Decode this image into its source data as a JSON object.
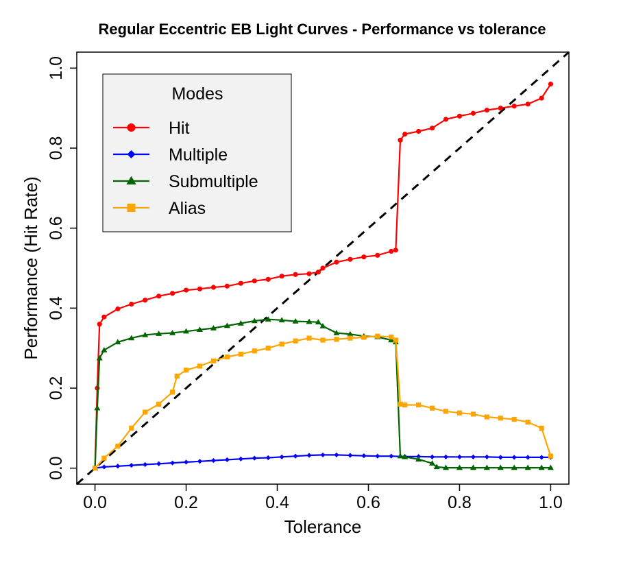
{
  "chart_data": {
    "type": "line",
    "title": "Regular Eccentric EB Light Curves - Performance vs tolerance",
    "xlabel": "Tolerance",
    "ylabel": "Performance (Hit Rate)",
    "xlim": [
      -0.04,
      1.04
    ],
    "ylim": [
      -0.04,
      1.04
    ],
    "xticks": [
      0.0,
      0.2,
      0.4,
      0.6,
      0.8,
      1.0
    ],
    "xtick_labels": [
      "0.0",
      "0.2",
      "0.4",
      "0.6",
      "0.8",
      "1.0"
    ],
    "yticks": [
      0.0,
      0.2,
      0.4,
      0.6,
      0.8,
      1.0
    ],
    "ytick_labels": [
      "0.0",
      "0.2",
      "0.4",
      "0.6",
      "0.8",
      "1.0"
    ],
    "legend": {
      "title": "Modes",
      "placement": "top-left"
    },
    "reference_line": {
      "name": "y = x",
      "color": "#000000",
      "style": "dashed"
    },
    "series": [
      {
        "name": "Hit",
        "color": "#ff0000",
        "marker": "circle",
        "x": [
          0,
          0.005,
          0.01,
          0.02,
          0.05,
          0.08,
          0.11,
          0.14,
          0.17,
          0.2,
          0.23,
          0.26,
          0.29,
          0.32,
          0.35,
          0.38,
          0.41,
          0.44,
          0.47,
          0.49,
          0.5,
          0.53,
          0.56,
          0.59,
          0.62,
          0.65,
          0.66,
          0.67,
          0.68,
          0.71,
          0.74,
          0.77,
          0.8,
          0.83,
          0.86,
          0.89,
          0.92,
          0.95,
          0.98,
          1.0
        ],
        "y": [
          0,
          0.2,
          0.36,
          0.378,
          0.398,
          0.41,
          0.42,
          0.43,
          0.437,
          0.445,
          0.448,
          0.452,
          0.455,
          0.462,
          0.468,
          0.472,
          0.48,
          0.484,
          0.486,
          0.49,
          0.5,
          0.515,
          0.522,
          0.528,
          0.532,
          0.542,
          0.545,
          0.82,
          0.835,
          0.842,
          0.85,
          0.872,
          0.88,
          0.887,
          0.895,
          0.9,
          0.905,
          0.91,
          0.925,
          0.96
        ]
      },
      {
        "name": "Multiple",
        "color": "#0000ff",
        "marker": "diamond",
        "x": [
          0,
          0.02,
          0.05,
          0.08,
          0.11,
          0.14,
          0.17,
          0.2,
          0.23,
          0.26,
          0.29,
          0.32,
          0.35,
          0.38,
          0.41,
          0.44,
          0.47,
          0.5,
          0.53,
          0.56,
          0.59,
          0.62,
          0.65,
          0.68,
          0.71,
          0.74,
          0.77,
          0.8,
          0.83,
          0.86,
          0.89,
          0.92,
          0.95,
          0.98,
          1.0
        ],
        "y": [
          0,
          0.003,
          0.005,
          0.007,
          0.009,
          0.011,
          0.013,
          0.015,
          0.017,
          0.019,
          0.021,
          0.023,
          0.025,
          0.026,
          0.028,
          0.03,
          0.032,
          0.033,
          0.033,
          0.032,
          0.031,
          0.03,
          0.03,
          0.029,
          0.029,
          0.028,
          0.028,
          0.028,
          0.028,
          0.028,
          0.027,
          0.027,
          0.027,
          0.027,
          0.027
        ]
      },
      {
        "name": "Submultiple",
        "color": "#006400",
        "marker": "triangle",
        "x": [
          0,
          0.005,
          0.01,
          0.02,
          0.05,
          0.08,
          0.11,
          0.14,
          0.17,
          0.2,
          0.23,
          0.26,
          0.29,
          0.32,
          0.35,
          0.38,
          0.41,
          0.44,
          0.47,
          0.49,
          0.5,
          0.53,
          0.56,
          0.59,
          0.62,
          0.65,
          0.66,
          0.67,
          0.68,
          0.71,
          0.74,
          0.75,
          0.77,
          0.8,
          0.83,
          0.86,
          0.89,
          0.92,
          0.95,
          0.98,
          1.0
        ],
        "y": [
          0,
          0.15,
          0.275,
          0.295,
          0.315,
          0.325,
          0.333,
          0.336,
          0.338,
          0.342,
          0.346,
          0.35,
          0.356,
          0.362,
          0.368,
          0.372,
          0.37,
          0.367,
          0.366,
          0.365,
          0.355,
          0.338,
          0.335,
          0.33,
          0.328,
          0.32,
          0.315,
          0.03,
          0.028,
          0.022,
          0.012,
          0.003,
          0.001,
          0.001,
          0.001,
          0.001,
          0.001,
          0.001,
          0.001,
          0.001,
          0.001
        ]
      },
      {
        "name": "Alias",
        "color": "#ffa500",
        "marker": "square",
        "x": [
          0,
          0.02,
          0.05,
          0.08,
          0.11,
          0.14,
          0.17,
          0.18,
          0.2,
          0.23,
          0.26,
          0.29,
          0.32,
          0.35,
          0.38,
          0.41,
          0.44,
          0.47,
          0.5,
          0.53,
          0.56,
          0.59,
          0.62,
          0.65,
          0.66,
          0.67,
          0.68,
          0.71,
          0.74,
          0.77,
          0.8,
          0.83,
          0.86,
          0.89,
          0.92,
          0.95,
          0.98,
          1.0
        ],
        "y": [
          0,
          0.025,
          0.055,
          0.1,
          0.14,
          0.16,
          0.19,
          0.23,
          0.245,
          0.255,
          0.268,
          0.278,
          0.285,
          0.293,
          0.3,
          0.31,
          0.318,
          0.325,
          0.32,
          0.322,
          0.325,
          0.327,
          0.33,
          0.328,
          0.32,
          0.16,
          0.158,
          0.158,
          0.15,
          0.142,
          0.138,
          0.135,
          0.128,
          0.125,
          0.122,
          0.115,
          0.1,
          0.03
        ]
      }
    ]
  }
}
